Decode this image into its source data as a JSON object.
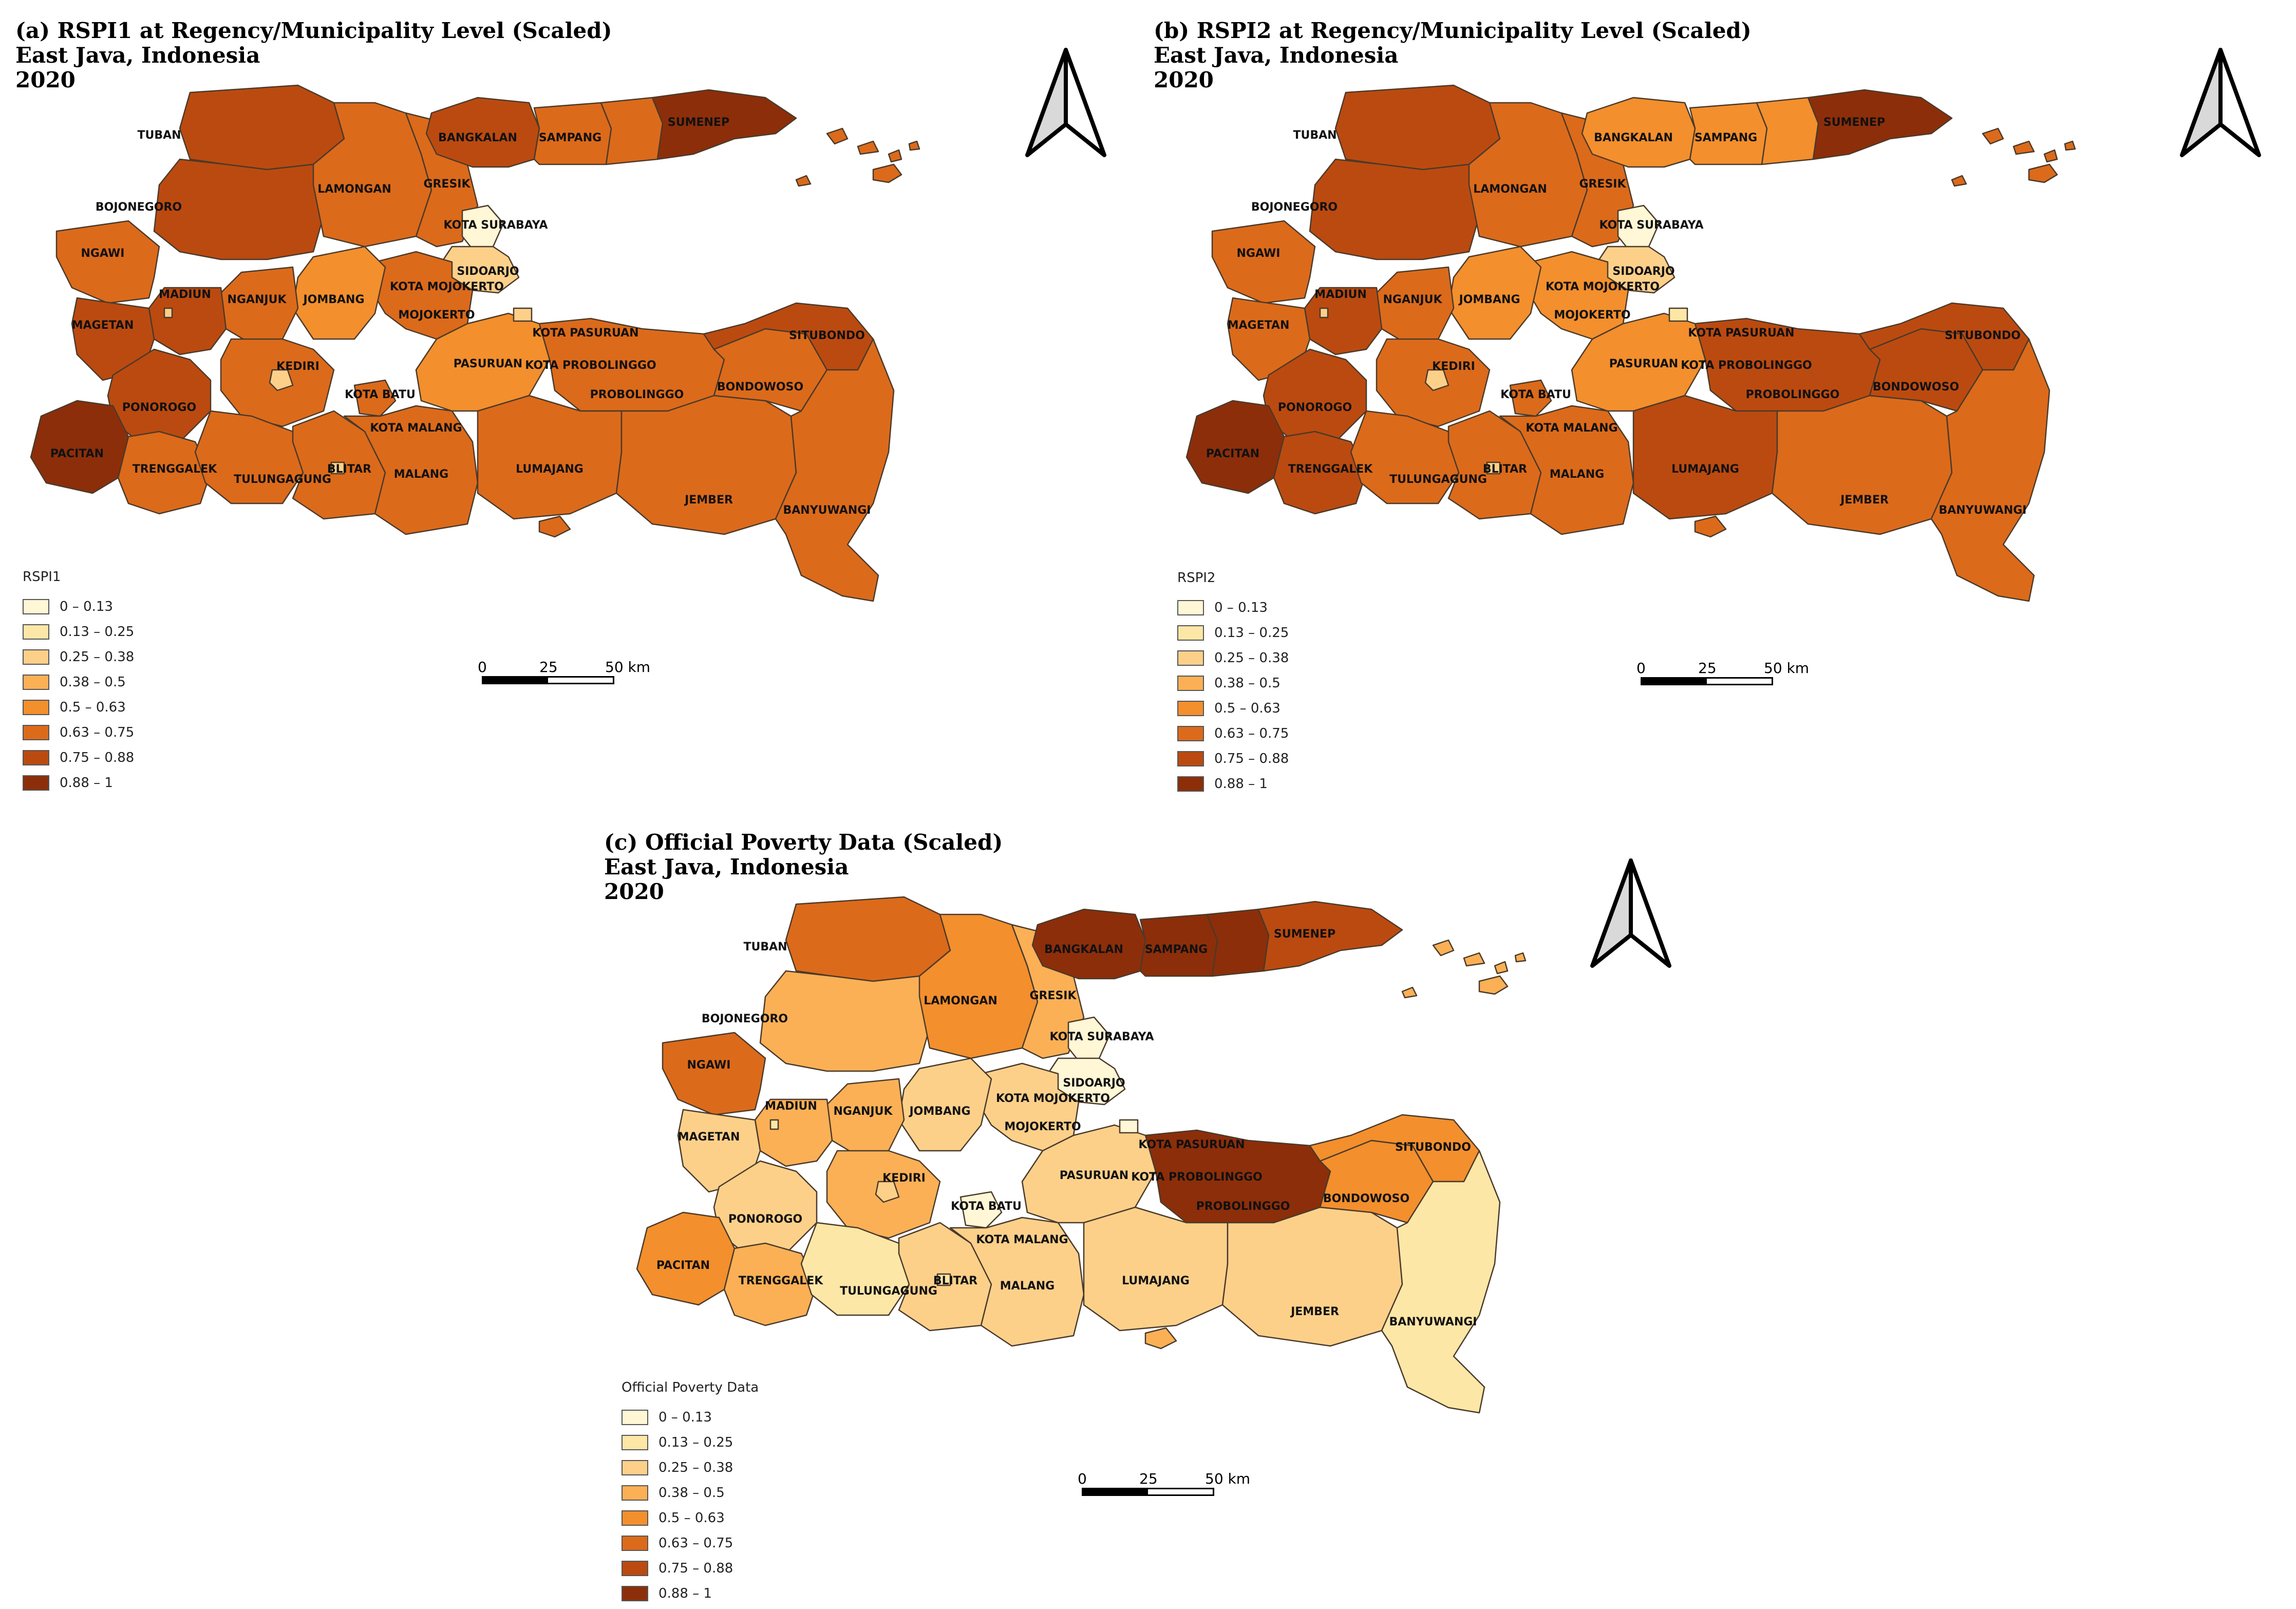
{
  "colors": {
    "classes": [
      "#fff7d5",
      "#fde7a7",
      "#fdd08a",
      "#fbb056",
      "#f38f2d",
      "#dc6a1b",
      "#bb4a10",
      "#8c2e0a"
    ],
    "border": "#4a3a2a",
    "ocean": "#ffffff"
  },
  "legend_classes": [
    "0 – 0.13",
    "0.13 – 0.25",
    "0.25 – 0.38",
    "0.38 – 0.5",
    "0.5 – 0.63",
    "0.63 – 0.75",
    "0.75 – 0.88",
    "0.88 – 1"
  ],
  "scale": {
    "zero": "0",
    "mid": "25",
    "end": "50 km"
  },
  "north_arrow_icon": "north-arrow-icon",
  "panels": [
    {
      "id": "a",
      "title_line1": "(a) RSPI1 at Regency/Municipality Level (Scaled)",
      "title_line2": "East Java, Indonesia",
      "title_line3": "2020",
      "legend_title": "RSPI1",
      "region_classes": {
        "TUBAN": 6,
        "BOJONEGORO": 6,
        "LAMONGAN": 5,
        "GRESIK": 5,
        "BANGKALAN": 6,
        "SAMPANG": 5,
        "SUMENEP": 7,
        "NGAWI": 5,
        "MADIUN": 6,
        "NGANJUK": 5,
        "JOMBANG": 4,
        "MOJOKERTO": 5,
        "KOTA SURABAYA": 0,
        "SIDOARJO": 2,
        "KOTA MOJOKERTO": 3,
        "KOTA PASURUAN": 2,
        "MAGETAN": 6,
        "PONOROGO": 6,
        "KEDIRI": 5,
        "KOTA BATU": 5,
        "PASURUAN": 4,
        "KOTA PROBOLINGGO": 2,
        "PROBOLINGGO": 5,
        "BONDOWOSO": 5,
        "SITUBONDO": 6,
        "PACITAN": 7,
        "TRENGGALEK": 5,
        "TULUNGAGUNG": 5,
        "BLITAR": 5,
        "KOTA MALANG": 1,
        "MALANG": 5,
        "LUMAJANG": 5,
        "JEMBER": 5,
        "BANYUWANGI": 5,
        "KOTA KEDIRI": 2,
        "KOTA MADIUN": 2,
        "KOTA BLITAR": 2,
        "ISLANDS": 5
      }
    },
    {
      "id": "b",
      "title_line1": "(b) RSPI2 at Regency/Municipality Level (Scaled)",
      "title_line2": "East Java, Indonesia",
      "title_line3": "2020",
      "legend_title": "RSPI2",
      "region_classes": {
        "TUBAN": 6,
        "BOJONEGORO": 6,
        "LAMONGAN": 5,
        "GRESIK": 5,
        "BANGKALAN": 4,
        "SAMPANG": 4,
        "SUMENEP": 7,
        "NGAWI": 5,
        "MADIUN": 6,
        "NGANJUK": 5,
        "JOMBANG": 4,
        "MOJOKERTO": 4,
        "KOTA SURABAYA": 0,
        "SIDOARJO": 2,
        "KOTA MOJOKERTO": 3,
        "KOTA PASURUAN": 1,
        "MAGETAN": 5,
        "PONOROGO": 6,
        "KEDIRI": 5,
        "KOTA BATU": 5,
        "PASURUAN": 4,
        "KOTA PROBOLINGGO": 2,
        "PROBOLINGGO": 6,
        "BONDOWOSO": 6,
        "SITUBONDO": 6,
        "PACITAN": 7,
        "TRENGGALEK": 6,
        "TULUNGAGUNG": 5,
        "BLITAR": 5,
        "KOTA MALANG": 1,
        "MALANG": 5,
        "LUMAJANG": 6,
        "JEMBER": 5,
        "BANYUWANGI": 5,
        "KOTA KEDIRI": 2,
        "KOTA MADIUN": 2,
        "KOTA BLITAR": 2,
        "ISLANDS": 5
      }
    },
    {
      "id": "c",
      "title_line1": "(c) Official Poverty Data (Scaled)",
      "title_line2": "East Java, Indonesia",
      "title_line3": "2020",
      "legend_title": "Official Poverty Data",
      "region_classes": {
        "TUBAN": 5,
        "BOJONEGORO": 3,
        "LAMONGAN": 4,
        "GRESIK": 3,
        "BANGKALAN": 7,
        "SAMPANG": 7,
        "SUMENEP": 6,
        "NGAWI": 5,
        "MADIUN": 3,
        "NGANJUK": 3,
        "JOMBANG": 2,
        "MOJOKERTO": 2,
        "KOTA SURABAYA": 0,
        "SIDOARJO": 0,
        "KOTA MOJOKERTO": 0,
        "KOTA PASURUAN": 0,
        "MAGETAN": 2,
        "PONOROGO": 2,
        "KEDIRI": 3,
        "KOTA BATU": 0,
        "PASURUAN": 2,
        "KOTA PROBOLINGGO": 2,
        "PROBOLINGGO": 7,
        "BONDOWOSO": 4,
        "SITUBONDO": 4,
        "PACITAN": 4,
        "TRENGGALEK": 3,
        "TULUNGAGUNG": 1,
        "BLITAR": 2,
        "KOTA MALANG": 0,
        "MALANG": 2,
        "LUMAJANG": 2,
        "JEMBER": 2,
        "BANYUWANGI": 1,
        "KOTA KEDIRI": 2,
        "KOTA MADIUN": 1,
        "KOTA BLITAR": 1,
        "ISLANDS": 3
      }
    }
  ]
}
